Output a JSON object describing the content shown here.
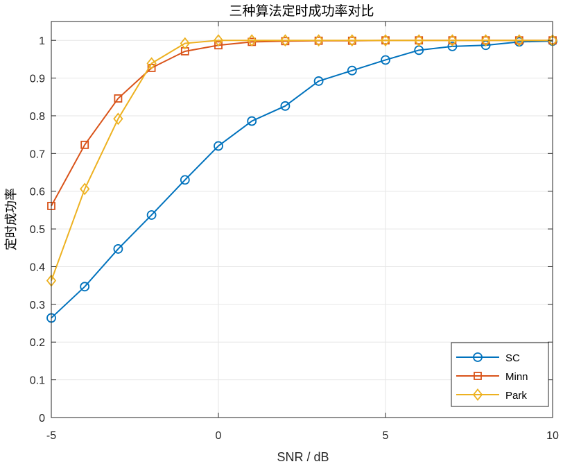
{
  "chart_data": {
    "type": "line",
    "title": "三种算法定时成功率对比",
    "xlabel": "SNR / dB",
    "ylabel": "定时成功率",
    "xlim": [
      -5,
      10
    ],
    "ylim": [
      0,
      1.05
    ],
    "grid": true,
    "legend_position": "bottom-right",
    "x": [
      -5,
      -4,
      -3,
      -2,
      -1,
      0,
      1,
      2,
      3,
      4,
      5,
      6,
      7,
      8,
      9,
      10
    ],
    "x_ticks": [
      -5,
      0,
      5,
      10
    ],
    "x_tick_labels": [
      "-5",
      "0",
      "5",
      "10"
    ],
    "y_ticks": [
      0,
      0.1,
      0.2,
      0.3,
      0.4,
      0.5,
      0.6,
      0.7,
      0.8,
      0.9,
      1
    ],
    "y_tick_labels": [
      "0",
      "0.1",
      "0.2",
      "0.3",
      "0.4",
      "0.5",
      "0.6",
      "0.7",
      "0.8",
      "0.9",
      "1"
    ],
    "series": [
      {
        "name": "SC",
        "color": "#0072BD",
        "marker": "circle",
        "values": [
          0.264,
          0.347,
          0.447,
          0.537,
          0.63,
          0.72,
          0.786,
          0.826,
          0.892,
          0.92,
          0.948,
          0.974,
          0.984,
          0.987,
          0.996,
          0.998
        ]
      },
      {
        "name": "Minn",
        "color": "#D95319",
        "marker": "square",
        "values": [
          0.561,
          0.723,
          0.846,
          0.927,
          0.971,
          0.987,
          0.996,
          0.998,
          0.999,
          0.999,
          1.0,
          1.0,
          1.0,
          1.0,
          1.0,
          1.0
        ]
      },
      {
        "name": "Park",
        "color": "#EDB120",
        "marker": "diamond",
        "values": [
          0.363,
          0.606,
          0.792,
          0.939,
          0.992,
          1.0,
          1.0,
          1.0,
          1.0,
          1.0,
          1.0,
          1.0,
          1.0,
          1.0,
          1.0,
          1.0
        ]
      }
    ]
  }
}
